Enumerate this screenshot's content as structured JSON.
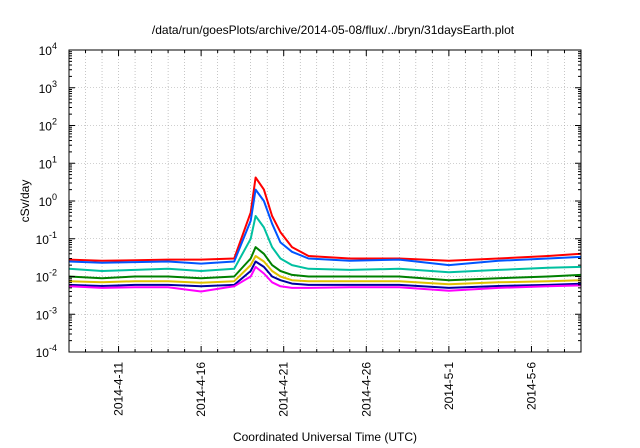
{
  "chart_data": {
    "type": "line",
    "title": "/data/run/goesPlots/archive/2014-05-08/flux/../bryn/31daysEarth.plot",
    "xlabel": "Coordinated Universal Time (UTC)",
    "ylabel": "cSv/day",
    "yscale": "log",
    "ylim": [
      0.0001,
      10000
    ],
    "xlim": [
      "2014-04-08",
      "2014-05-09"
    ],
    "y_ticks": [
      {
        "value": 0.0001,
        "base": "10",
        "exp": "-4"
      },
      {
        "value": 0.001,
        "base": "10",
        "exp": "-3"
      },
      {
        "value": 0.01,
        "base": "10",
        "exp": "-2"
      },
      {
        "value": 0.1,
        "base": "10",
        "exp": "-1"
      },
      {
        "value": 1,
        "base": "10",
        "exp": "0"
      },
      {
        "value": 10,
        "base": "10",
        "exp": "1"
      },
      {
        "value": 100,
        "base": "10",
        "exp": "2"
      },
      {
        "value": 1000,
        "base": "10",
        "exp": "3"
      },
      {
        "value": 10000,
        "base": "10",
        "exp": "4"
      }
    ],
    "x_ticks": [
      {
        "date": "2014-04-11",
        "label": "2014-4-11"
      },
      {
        "date": "2014-04-16",
        "label": "2014-4-16"
      },
      {
        "date": "2014-04-21",
        "label": "2014-4-21"
      },
      {
        "date": "2014-04-26",
        "label": "2014-4-26"
      },
      {
        "date": "2014-05-01",
        "label": "2014-5-1"
      },
      {
        "date": "2014-05-06",
        "label": "2014-5-6"
      }
    ],
    "grid": true,
    "legend": "none",
    "series": [
      {
        "color": "#ff0000",
        "values": [
          [
            "2014-04-08",
            0.028
          ],
          [
            "2014-04-10",
            0.026
          ],
          [
            "2014-04-12",
            0.027
          ],
          [
            "2014-04-14",
            0.028
          ],
          [
            "2014-04-16",
            0.028
          ],
          [
            "2014-04-18",
            0.03
          ],
          [
            "2014-04-19",
            0.5
          ],
          [
            "2014-04-19.3",
            4.2
          ],
          [
            "2014-04-19.8",
            2.0
          ],
          [
            "2014-04-20.3",
            0.4
          ],
          [
            "2014-04-20.8",
            0.15
          ],
          [
            "2014-04-21.5",
            0.06
          ],
          [
            "2014-04-22.5",
            0.035
          ],
          [
            "2014-04-25",
            0.03
          ],
          [
            "2014-04-28",
            0.03
          ],
          [
            "2014-05-01",
            0.026
          ],
          [
            "2014-05-04",
            0.03
          ],
          [
            "2014-05-07",
            0.035
          ],
          [
            "2014-05-09",
            0.04
          ]
        ]
      },
      {
        "color": "#0055ff",
        "values": [
          [
            "2014-04-08",
            0.025
          ],
          [
            "2014-04-10",
            0.023
          ],
          [
            "2014-04-12",
            0.024
          ],
          [
            "2014-04-14",
            0.025
          ],
          [
            "2014-04-16",
            0.022
          ],
          [
            "2014-04-18",
            0.025
          ],
          [
            "2014-04-19",
            0.3
          ],
          [
            "2014-04-19.3",
            2.0
          ],
          [
            "2014-04-19.8",
            1.0
          ],
          [
            "2014-04-20.3",
            0.25
          ],
          [
            "2014-04-20.8",
            0.08
          ],
          [
            "2014-04-21.5",
            0.045
          ],
          [
            "2014-04-22.5",
            0.03
          ],
          [
            "2014-04-25",
            0.026
          ],
          [
            "2014-04-28",
            0.028
          ],
          [
            "2014-05-01",
            0.02
          ],
          [
            "2014-05-04",
            0.026
          ],
          [
            "2014-05-07",
            0.03
          ],
          [
            "2014-05-09",
            0.033
          ]
        ]
      },
      {
        "color": "#00c0a0",
        "values": [
          [
            "2014-04-08",
            0.016
          ],
          [
            "2014-04-10",
            0.014
          ],
          [
            "2014-04-12",
            0.015
          ],
          [
            "2014-04-14",
            0.016
          ],
          [
            "2014-04-16",
            0.014
          ],
          [
            "2014-04-18",
            0.016
          ],
          [
            "2014-04-19",
            0.1
          ],
          [
            "2014-04-19.3",
            0.4
          ],
          [
            "2014-04-19.8",
            0.2
          ],
          [
            "2014-04-20.3",
            0.06
          ],
          [
            "2014-04-20.8",
            0.03
          ],
          [
            "2014-04-21.5",
            0.02
          ],
          [
            "2014-04-22.5",
            0.016
          ],
          [
            "2014-04-25",
            0.015
          ],
          [
            "2014-04-28",
            0.016
          ],
          [
            "2014-05-01",
            0.013
          ],
          [
            "2014-05-04",
            0.015
          ],
          [
            "2014-05-07",
            0.017
          ],
          [
            "2014-05-09",
            0.018
          ]
        ]
      },
      {
        "color": "#008000",
        "values": [
          [
            "2014-04-08",
            0.01
          ],
          [
            "2014-04-10",
            0.009
          ],
          [
            "2014-04-12",
            0.01
          ],
          [
            "2014-04-14",
            0.01
          ],
          [
            "2014-04-16",
            0.009
          ],
          [
            "2014-04-18",
            0.01
          ],
          [
            "2014-04-19",
            0.03
          ],
          [
            "2014-04-19.3",
            0.06
          ],
          [
            "2014-04-19.8",
            0.04
          ],
          [
            "2014-04-20.3",
            0.02
          ],
          [
            "2014-04-20.8",
            0.014
          ],
          [
            "2014-04-21.5",
            0.011
          ],
          [
            "2014-04-22.5",
            0.01
          ],
          [
            "2014-04-25",
            0.01
          ],
          [
            "2014-04-28",
            0.01
          ],
          [
            "2014-05-01",
            0.008
          ],
          [
            "2014-05-04",
            0.009
          ],
          [
            "2014-05-07",
            0.01
          ],
          [
            "2014-05-09",
            0.011
          ]
        ]
      },
      {
        "color": "#e0c000",
        "values": [
          [
            "2014-04-08",
            0.0075
          ],
          [
            "2014-04-10",
            0.007
          ],
          [
            "2014-04-12",
            0.0075
          ],
          [
            "2014-04-14",
            0.0075
          ],
          [
            "2014-04-16",
            0.0068
          ],
          [
            "2014-04-18",
            0.0075
          ],
          [
            "2014-04-19",
            0.02
          ],
          [
            "2014-04-19.3",
            0.035
          ],
          [
            "2014-04-19.8",
            0.025
          ],
          [
            "2014-04-20.3",
            0.014
          ],
          [
            "2014-04-20.8",
            0.01
          ],
          [
            "2014-04-21.5",
            0.008
          ],
          [
            "2014-04-22.5",
            0.0075
          ],
          [
            "2014-04-25",
            0.0075
          ],
          [
            "2014-04-28",
            0.0075
          ],
          [
            "2014-05-01",
            0.0062
          ],
          [
            "2014-05-04",
            0.007
          ],
          [
            "2014-05-07",
            0.0075
          ],
          [
            "2014-05-09",
            0.008
          ]
        ]
      },
      {
        "color": "#0000a0",
        "values": [
          [
            "2014-04-08",
            0.006
          ],
          [
            "2014-04-10",
            0.0056
          ],
          [
            "2014-04-12",
            0.006
          ],
          [
            "2014-04-14",
            0.006
          ],
          [
            "2014-04-16",
            0.0055
          ],
          [
            "2014-04-18",
            0.006
          ],
          [
            "2014-04-19",
            0.014
          ],
          [
            "2014-04-19.3",
            0.025
          ],
          [
            "2014-04-19.8",
            0.018
          ],
          [
            "2014-04-20.3",
            0.01
          ],
          [
            "2014-04-20.8",
            0.008
          ],
          [
            "2014-04-21.5",
            0.0065
          ],
          [
            "2014-04-22.5",
            0.006
          ],
          [
            "2014-04-25",
            0.006
          ],
          [
            "2014-04-28",
            0.006
          ],
          [
            "2014-05-01",
            0.005
          ],
          [
            "2014-05-04",
            0.0056
          ],
          [
            "2014-05-07",
            0.006
          ],
          [
            "2014-05-09",
            0.0064
          ]
        ]
      },
      {
        "color": "#ff00ff",
        "values": [
          [
            "2014-04-08",
            0.0055
          ],
          [
            "2014-04-10",
            0.005
          ],
          [
            "2014-04-12",
            0.0052
          ],
          [
            "2014-04-14",
            0.0052
          ],
          [
            "2014-04-16",
            0.004
          ],
          [
            "2014-04-18",
            0.0055
          ],
          [
            "2014-04-19",
            0.01
          ],
          [
            "2014-04-19.3",
            0.018
          ],
          [
            "2014-04-19.8",
            0.012
          ],
          [
            "2014-04-20.3",
            0.007
          ],
          [
            "2014-04-20.8",
            0.0055
          ],
          [
            "2014-04-21.5",
            0.005
          ],
          [
            "2014-04-22.5",
            0.005
          ],
          [
            "2014-04-25",
            0.0052
          ],
          [
            "2014-04-28",
            0.0052
          ],
          [
            "2014-05-01",
            0.0042
          ],
          [
            "2014-05-04",
            0.005
          ],
          [
            "2014-05-07",
            0.0055
          ],
          [
            "2014-05-09",
            0.0058
          ]
        ]
      }
    ]
  }
}
